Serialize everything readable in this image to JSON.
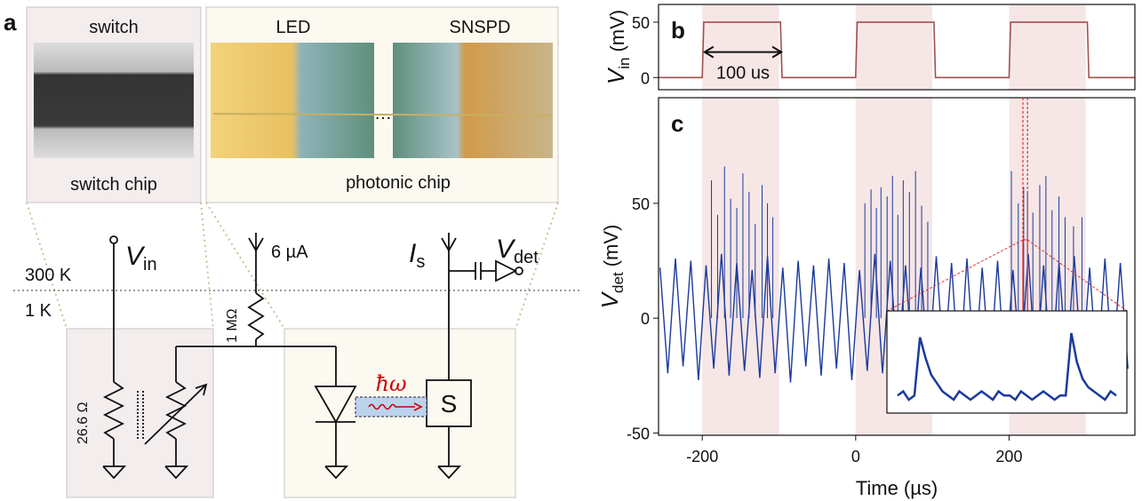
{
  "panel_a": {
    "label": "a",
    "switch_chip": {
      "top": "switch",
      "bottom": "switch chip"
    },
    "photonic_chip": {
      "led": "LED",
      "snspd": "SNSPD",
      "bottom": "photonic chip"
    },
    "circuit": {
      "v_in": {
        "symbol": "V",
        "subscript": "in"
      },
      "bias": "6 µA",
      "i_s": {
        "symbol": "I",
        "subscript": "s"
      },
      "v_det": {
        "symbol": "V",
        "subscript": "det"
      },
      "temp_room": "300 K",
      "temp_cold": "1 K",
      "r_bias": "1 MΩ",
      "r_switch": "26.6 Ω",
      "photon": "ħω",
      "detector": "S"
    }
  },
  "chart_data": [
    {
      "type": "line",
      "panel": "b",
      "x": [
        -257,
        -200,
        -198,
        -98,
        -96,
        0,
        2,
        102,
        104,
        200,
        202,
        302,
        304,
        364
      ],
      "series": [
        {
          "color": "#a0504f",
          "values": [
            0,
            0,
            50,
            50,
            0,
            0,
            50,
            50,
            0,
            0,
            50,
            50,
            0,
            0
          ]
        }
      ],
      "xlim": [
        -257,
        364
      ],
      "ylim": [
        -11,
        66
      ],
      "yticks": [
        0,
        50
      ],
      "ylabel": {
        "symbol": "V",
        "subscript": "in",
        "unit": "(mV)"
      },
      "shaded": [
        [
          -200,
          -100
        ],
        [
          0,
          100
        ],
        [
          200,
          300
        ]
      ],
      "shade_color": "#f6e6e6",
      "annotation": {
        "text": "100 us",
        "from": -197,
        "to": -97,
        "y": 23
      }
    },
    {
      "type": "line",
      "panel": "c",
      "x": [
        -255,
        -245,
        -235,
        -225,
        -215,
        -205,
        -195,
        -185,
        -175,
        -165,
        -155,
        -145,
        -135,
        -125,
        -115,
        -105,
        -95,
        -85,
        -75,
        -65,
        -55,
        -45,
        -35,
        -25,
        -15,
        -5,
        5,
        15,
        25,
        35,
        45,
        55,
        65,
        75,
        85,
        95,
        105,
        115,
        125,
        135,
        145,
        155,
        165,
        175,
        185,
        195,
        205,
        215,
        225,
        235,
        245,
        255,
        265,
        275,
        285,
        295,
        305,
        315,
        325,
        335,
        345,
        355
      ],
      "series": [
        {
          "color": "#1a3a9c",
          "values": [
            22,
            -24,
            26,
            -21,
            25,
            -27,
            23,
            -22,
            28,
            -25,
            24,
            -23,
            21,
            -26,
            27,
            -24,
            22,
            -28,
            25,
            -21,
            23,
            -25,
            26,
            -22,
            24,
            -27,
            21,
            -23,
            28,
            -24,
            25,
            -22,
            23,
            -26,
            22,
            -25,
            27,
            -21,
            24,
            -28,
            26,
            -23,
            22,
            -24,
            25,
            -27,
            21,
            -22,
            28,
            -25,
            23,
            -26,
            24,
            -21,
            27,
            -24,
            22,
            -25,
            26,
            -23,
            24,
            -22
          ]
        }
      ],
      "spikes": {
        "x": [
          -188,
          -180,
          -171,
          -163,
          -155,
          -147,
          -139,
          -131,
          -122,
          -115,
          -108,
          12,
          20,
          27,
          33,
          41,
          48,
          55,
          62,
          70,
          78,
          86,
          94,
          203,
          212,
          219,
          224,
          231,
          240,
          248,
          256,
          265,
          273,
          284,
          295
        ],
        "values": [
          60,
          45,
          66,
          52,
          48,
          63,
          55,
          41,
          58,
          50,
          44,
          50,
          56,
          48,
          57,
          53,
          62,
          45,
          60,
          55,
          64,
          49,
          42,
          64,
          50,
          57,
          55,
          46,
          58,
          62,
          47,
          53,
          44,
          40,
          44
        ]
      },
      "xlim": [
        -257,
        364
      ],
      "xticks": [
        -200,
        0,
        200
      ],
      "ylim": [
        -51,
        96
      ],
      "yticks": [
        -50,
        0,
        50
      ],
      "xlabel": "Time (µs)",
      "ylabel": {
        "symbol": "V",
        "subscript": "det",
        "unit": "(mV)"
      },
      "shaded": [
        [
          -200,
          -100
        ],
        [
          0,
          100
        ],
        [
          200,
          300
        ]
      ],
      "shade_color": "#f6e6e6",
      "zoom": [
        218,
        224
      ],
      "inset": {
        "values": [
          0,
          1,
          -1,
          0,
          14,
          9,
          5,
          3,
          1,
          0,
          -1,
          1,
          0,
          -1,
          0,
          1,
          0,
          -1,
          1,
          0,
          0,
          -1,
          1,
          0,
          -1,
          0,
          1,
          0,
          -1,
          0,
          0,
          15,
          8,
          4,
          2,
          1,
          0,
          -1,
          1,
          0
        ]
      }
    }
  ]
}
